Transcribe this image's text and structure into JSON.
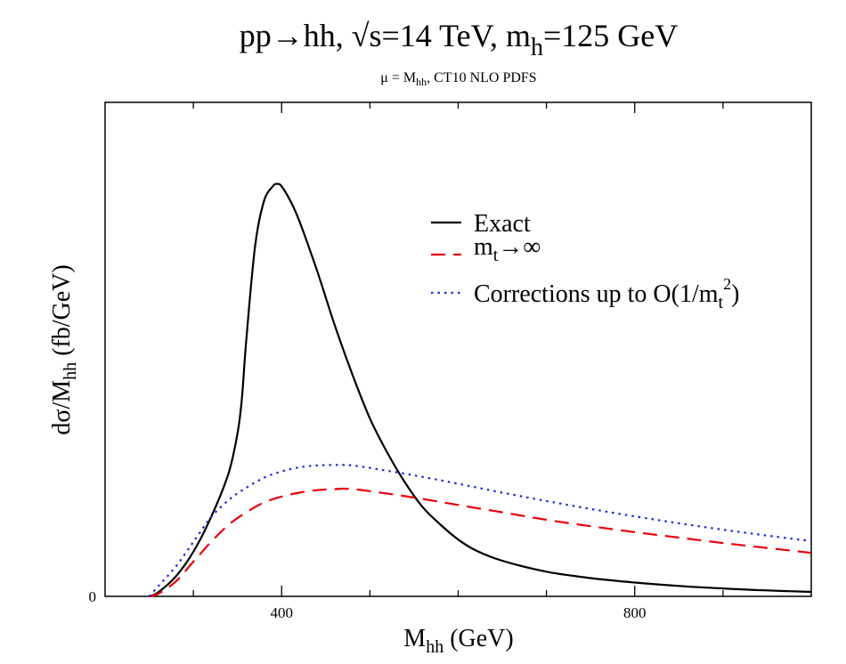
{
  "chart_data": {
    "type": "line",
    "title_main": "pp→hh, √s=14 TeV, m",
    "title_sub": "h",
    "title_end": "=125 GeV",
    "subtitle_main": "μ = M",
    "subtitle_sub": "hh",
    "subtitle_end": ", CT10 NLO PDFS",
    "xlabel_main": "M",
    "xlabel_sub": "hh",
    "xlabel_end": " (GeV)",
    "ylabel_a": "dσ/M",
    "ylabel_sub": "hh",
    "ylabel_b": " (fb/GeV)",
    "xlim": [
      200,
      1000
    ],
    "ylim": [
      0,
      1.0
    ],
    "x_ticks_major": [
      400,
      800
    ],
    "x_tick_labels": [
      "400",
      "800"
    ],
    "y_tick_labels": [
      "0"
    ],
    "y_axis_units": "arbitrary (only 0 labelled); curves normalized to peak of Exact = 0.835",
    "grid": false,
    "legend_position": "top-right",
    "series": [
      {
        "name": "Exact",
        "legend_main": "Exact",
        "color": "#000000",
        "dash": "solid",
        "x": [
          250,
          260,
          280,
          300,
          320,
          340,
          350,
          355,
          360,
          370,
          380,
          390,
          395,
          400,
          410,
          420,
          440,
          460,
          480,
          500,
          520,
          540,
          560,
          580,
          600,
          620,
          650,
          700,
          750,
          800,
          850,
          900,
          950,
          1000
        ],
        "y": [
          0.0,
          0.008,
          0.04,
          0.09,
          0.16,
          0.25,
          0.33,
          0.4,
          0.52,
          0.71,
          0.8,
          0.83,
          0.835,
          0.83,
          0.8,
          0.76,
          0.66,
          0.55,
          0.45,
          0.36,
          0.29,
          0.23,
          0.18,
          0.145,
          0.115,
          0.093,
          0.072,
          0.05,
          0.037,
          0.028,
          0.021,
          0.016,
          0.012,
          0.009
        ]
      },
      {
        "name": "m_t→∞",
        "legend_main": "m",
        "legend_sub": "t",
        "legend_end": "→∞",
        "color": "#e8000b",
        "dash": "long-dash",
        "x": [
          250,
          260,
          280,
          300,
          320,
          340,
          360,
          380,
          400,
          420,
          440,
          460,
          470,
          480,
          500,
          550,
          600,
          650,
          700,
          750,
          800,
          850,
          900,
          950,
          1000
        ],
        "y": [
          0.0,
          0.005,
          0.03,
          0.07,
          0.11,
          0.145,
          0.17,
          0.19,
          0.202,
          0.21,
          0.215,
          0.217,
          0.218,
          0.217,
          0.213,
          0.2,
          0.185,
          0.17,
          0.155,
          0.142,
          0.13,
          0.119,
          0.108,
          0.098,
          0.088
        ]
      },
      {
        "name": "Corrections up to O(1/m_t^2)",
        "legend_main": "Corrections up to O(1/m",
        "legend_sub": "t",
        "legend_sup": "2",
        "legend_end": ")",
        "color": "#1f2ad9",
        "dash": "dotted",
        "x": [
          250,
          260,
          280,
          300,
          320,
          340,
          360,
          380,
          400,
          420,
          440,
          460,
          470,
          480,
          500,
          550,
          600,
          650,
          700,
          750,
          800,
          850,
          900,
          950,
          1000
        ],
        "y": [
          0.0,
          0.02,
          0.06,
          0.11,
          0.16,
          0.195,
          0.22,
          0.24,
          0.253,
          0.261,
          0.265,
          0.266,
          0.266,
          0.265,
          0.26,
          0.245,
          0.228,
          0.21,
          0.193,
          0.177,
          0.162,
          0.148,
          0.135,
          0.123,
          0.112
        ]
      }
    ]
  }
}
